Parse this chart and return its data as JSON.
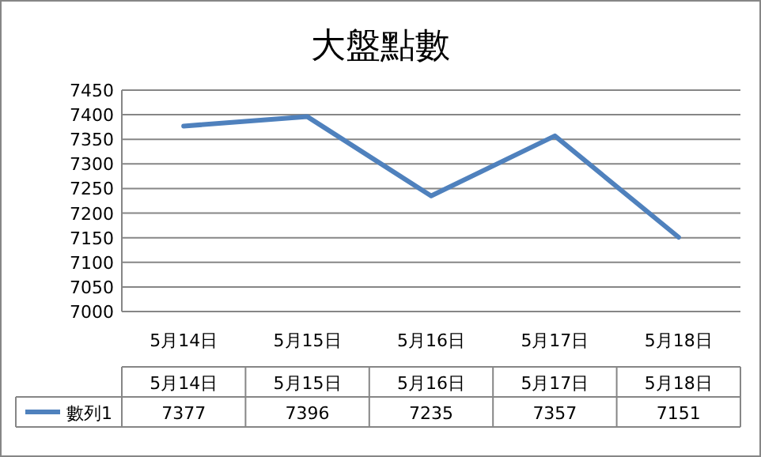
{
  "chart_data": {
    "type": "line",
    "title": "大盤點數",
    "categories": [
      "5月14日",
      "5月15日",
      "5月16日",
      "5月17日",
      "5月18日"
    ],
    "series": [
      {
        "name": "數列1",
        "color": "#4f81bd",
        "values": [
          7377,
          7396,
          7235,
          7357,
          7151
        ]
      }
    ],
    "ylim": [
      7000,
      7450
    ],
    "yticks": [
      7000,
      7050,
      7100,
      7150,
      7200,
      7250,
      7300,
      7350,
      7400,
      7450
    ],
    "grid": "y",
    "data_labels": true,
    "marker": "none",
    "line_style": "solid"
  }
}
